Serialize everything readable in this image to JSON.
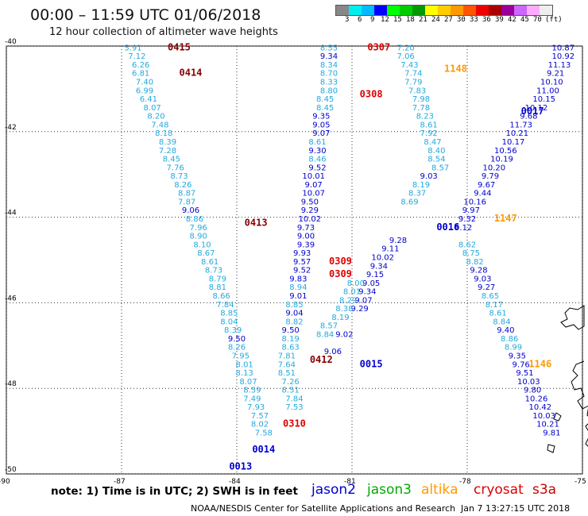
{
  "header": {
    "title": "00:00 – 11:59 UTC 01/06/2018",
    "subtitle": "12 hour collection of altimeter wave heights"
  },
  "legend": {
    "unit": "(ft)",
    "colors": [
      "#888888",
      "#00eeee",
      "#00bbff",
      "#0000ff",
      "#00ff00",
      "#00cc00",
      "#009900",
      "#ffff00",
      "#ffcc00",
      "#ff9900",
      "#ff5500",
      "#ee0000",
      "#aa0000",
      "#990099",
      "#cc66ff",
      "#ffaaff",
      "#eeeeee"
    ],
    "ticks": [
      "3",
      "6",
      "9",
      "12",
      "15",
      "18",
      "21",
      "24",
      "27",
      "30",
      "33",
      "36",
      "39",
      "42",
      "45",
      "70"
    ]
  },
  "axes": {
    "y_labels": [
      "-40",
      "-42",
      "-44",
      "-46",
      "-48",
      "-50"
    ],
    "x_labels": [
      "-90",
      "-87",
      "-84",
      "-81",
      "-78",
      "-75"
    ]
  },
  "satellites": [
    {
      "name": "jason2",
      "color": "#0000cc"
    },
    {
      "name": "jason3",
      "color": "#00aa00"
    },
    {
      "name": "altika",
      "color": "#ff9900"
    },
    {
      "name": "cryosat",
      "color": "#dd0000"
    },
    {
      "name": "s3a",
      "color": "#cc0000"
    }
  ],
  "footer": {
    "note": "note: 1) Time is in UTC; 2) SWH is in feet",
    "credit": "NOAA/NESDIS Center for Satellite Applications and Research",
    "timestamp": "Jan  7 13:27:15 UTC 2018"
  },
  "chart_data": {
    "type": "map",
    "xlim": [
      -90,
      -75
    ],
    "ylim": [
      -50,
      -40
    ],
    "tracks": [
      {
        "satellite": "jason3",
        "pass_labels": [
          {
            "text": "0415",
            "color": "#880000",
            "lon": -85.8,
            "lat": -40.1
          },
          {
            "text": "0414",
            "color": "#880000",
            "lon": -85.5,
            "lat": -40.7
          },
          {
            "text": "0413",
            "color": "#880000",
            "lon": -83.8,
            "lat": -44.2
          },
          {
            "text": "0412",
            "color": "#880000",
            "lon": -82.1,
            "lat": -47.4
          }
        ],
        "points": [
          [
            -86.7,
            -40.1,
            "5.91"
          ],
          [
            -86.6,
            -40.3,
            "7.12"
          ],
          [
            -86.5,
            -40.5,
            "6.26"
          ],
          [
            -86.5,
            -40.7,
            "6.81"
          ],
          [
            -86.4,
            -40.9,
            "7.40"
          ],
          [
            -86.4,
            -41.1,
            "6.99"
          ],
          [
            -86.3,
            -41.3,
            "6.41"
          ],
          [
            -86.2,
            -41.5,
            "8.07"
          ],
          [
            -86.1,
            -41.7,
            "8.20"
          ],
          [
            -86.0,
            -41.9,
            "7.48"
          ],
          [
            -85.9,
            -42.1,
            "8.18"
          ],
          [
            -85.8,
            -42.3,
            "8.39"
          ],
          [
            -85.8,
            -42.5,
            "7.28"
          ],
          [
            -85.7,
            -42.7,
            "8.45"
          ],
          [
            -85.6,
            -42.9,
            "7.76"
          ],
          [
            -85.5,
            -43.1,
            "8.73"
          ],
          [
            -85.4,
            -43.3,
            "8.26"
          ],
          [
            -85.3,
            -43.5,
            "8.87"
          ],
          [
            -85.3,
            -43.7,
            "7.87"
          ],
          [
            -85.2,
            -43.9,
            "9.06"
          ],
          [
            -85.1,
            -44.1,
            "8.86"
          ],
          [
            -85.0,
            -44.3,
            "7.96"
          ],
          [
            -85.0,
            -44.5,
            "8.90"
          ],
          [
            -84.9,
            -44.7,
            "8.10"
          ],
          [
            -84.8,
            -44.9,
            "8.67"
          ],
          [
            -84.7,
            -45.1,
            "8.61"
          ],
          [
            -84.6,
            -45.3,
            "8.73"
          ],
          [
            -84.5,
            -45.5,
            "8.79"
          ],
          [
            -84.5,
            -45.7,
            "8.81"
          ],
          [
            -84.4,
            -45.9,
            "8.66"
          ],
          [
            -84.3,
            -46.1,
            "7.84"
          ],
          [
            -84.2,
            -46.3,
            "8.85"
          ],
          [
            -84.2,
            -46.5,
            "8.04"
          ],
          [
            -84.1,
            -46.7,
            "8.39"
          ],
          [
            -84.0,
            -46.9,
            "9.50"
          ],
          [
            -84.0,
            -47.1,
            "8.26"
          ],
          [
            -83.9,
            -47.3,
            "7.95"
          ],
          [
            -83.8,
            -47.5,
            "8.01"
          ],
          [
            -83.8,
            -47.7,
            "8.13"
          ],
          [
            -83.7,
            -47.9,
            "8.07"
          ],
          [
            -83.6,
            -48.1,
            "8.59"
          ],
          [
            -83.6,
            -48.3,
            "7.49"
          ],
          [
            -83.5,
            -48.5,
            "7.93"
          ],
          [
            -83.4,
            -48.7,
            "7.57"
          ],
          [
            -83.4,
            -48.9,
            "8.02"
          ],
          [
            -83.3,
            -49.1,
            "7.58"
          ]
        ]
      },
      {
        "satellite": "cryosat",
        "pass_labels": [
          {
            "text": "0307",
            "color": "#dd0000",
            "lon": -80.6,
            "lat": -40.1
          },
          {
            "text": "0308",
            "color": "#dd0000",
            "lon": -80.8,
            "lat": -41.2
          },
          {
            "text": "0309",
            "color": "#dd0000",
            "lon": -81.6,
            "lat": -45.1
          },
          {
            "text": "0309",
            "color": "#dd0000",
            "lon": -81.6,
            "lat": -45.4
          },
          {
            "text": "0310",
            "color": "#dd0000",
            "lon": -82.8,
            "lat": -48.9
          }
        ],
        "points": [
          [
            -81.6,
            -40.1,
            "8.55"
          ],
          [
            -81.6,
            -40.3,
            "9.34"
          ],
          [
            -81.6,
            -40.5,
            "8.34"
          ],
          [
            -81.6,
            -40.7,
            "8.70"
          ],
          [
            -81.6,
            -40.9,
            "8.33"
          ],
          [
            -81.6,
            -41.1,
            "8.80"
          ],
          [
            -81.7,
            -41.3,
            "8.45"
          ],
          [
            -81.7,
            -41.5,
            "8.45"
          ],
          [
            -81.8,
            -41.7,
            "9.35"
          ],
          [
            -81.8,
            -41.9,
            "9.05"
          ],
          [
            -81.8,
            -42.1,
            "9.07"
          ],
          [
            -81.9,
            -42.3,
            "8.61"
          ],
          [
            -81.9,
            -42.5,
            "9.30"
          ],
          [
            -81.9,
            -42.7,
            "8.46"
          ],
          [
            -81.9,
            -42.9,
            "9.52"
          ],
          [
            -82.0,
            -43.1,
            "10.01"
          ],
          [
            -82.0,
            -43.3,
            "9.07"
          ],
          [
            -82.0,
            -43.5,
            "10.07"
          ],
          [
            -82.1,
            -43.7,
            "9.50"
          ],
          [
            -82.1,
            -43.9,
            "9.29"
          ],
          [
            -82.1,
            -44.1,
            "10.02"
          ],
          [
            -82.2,
            -44.3,
            "9.73"
          ],
          [
            -82.2,
            -44.5,
            "9.00"
          ],
          [
            -82.2,
            -44.7,
            "9.39"
          ],
          [
            -82.3,
            -44.9,
            "9.93"
          ],
          [
            -82.3,
            -45.1,
            "9.57"
          ],
          [
            -82.3,
            -45.3,
            "9.52"
          ],
          [
            -82.4,
            -45.5,
            "9.83"
          ],
          [
            -82.4,
            -45.7,
            "8.94"
          ],
          [
            -82.4,
            -45.9,
            "9.01"
          ],
          [
            -82.5,
            -46.1,
            "8.85"
          ],
          [
            -82.5,
            -46.3,
            "9.04"
          ],
          [
            -82.5,
            -46.5,
            "8.82"
          ],
          [
            -82.6,
            -46.7,
            "9.50"
          ],
          [
            -82.6,
            -46.9,
            "8.19"
          ],
          [
            -82.6,
            -47.1,
            "8.63"
          ],
          [
            -82.7,
            -47.3,
            "7.81"
          ],
          [
            -82.7,
            -47.5,
            "7.64"
          ],
          [
            -82.7,
            -47.7,
            "8.51"
          ],
          [
            -82.6,
            -47.9,
            "7.26"
          ],
          [
            -82.6,
            -48.1,
            "8.51"
          ],
          [
            -82.5,
            -48.3,
            "7.84"
          ],
          [
            -82.5,
            -48.5,
            "7.53"
          ]
        ]
      },
      {
        "satellite": "jason2",
        "pass_labels": [
          {
            "text": "0015",
            "color": "#0000cc",
            "lon": -80.8,
            "lat": -47.5
          },
          {
            "text": "0014",
            "color": "#0000cc",
            "lon": -83.6,
            "lat": -49.5
          },
          {
            "text": "0013",
            "color": "#0000cc",
            "lon": -84.2,
            "lat": -49.9
          }
        ],
        "points": [
          [
            -79.8,
            -44.6,
            "9.28"
          ],
          [
            -80.0,
            -44.8,
            "9.11"
          ],
          [
            -80.2,
            -45.0,
            "10.02"
          ],
          [
            -80.3,
            -45.2,
            "9.34"
          ],
          [
            -80.4,
            -45.4,
            "9.15"
          ],
          [
            -80.5,
            -45.6,
            "9.05"
          ],
          [
            -80.6,
            -45.8,
            "9.34"
          ],
          [
            -80.7,
            -46.0,
            "9.07"
          ],
          [
            -80.8,
            -46.2,
            "9.29"
          ],
          [
            -81.2,
            -46.8,
            "9.02"
          ],
          [
            -81.5,
            -47.2,
            "9.06"
          ]
        ]
      },
      {
        "satellite": "jason2",
        "pass_labels": [
          {
            "text": "0016",
            "color": "#0000cc",
            "lon": -78.8,
            "lat": -44.3
          },
          {
            "text": "0017",
            "color": "#0000cc",
            "lon": -76.6,
            "lat": -41.6
          }
        ],
        "points": [
          [
            -75.5,
            -40.1,
            "10.87"
          ],
          [
            -75.5,
            -40.3,
            "10.92"
          ],
          [
            -75.6,
            -40.5,
            "11.13"
          ],
          [
            -75.7,
            -40.7,
            "9.21"
          ],
          [
            -75.8,
            -40.9,
            "10.10"
          ],
          [
            -75.9,
            -41.1,
            "11.00"
          ],
          [
            -76.0,
            -41.3,
            "10.15"
          ],
          [
            -76.2,
            -41.5,
            "10.12"
          ],
          [
            -76.4,
            -41.7,
            "9.68"
          ],
          [
            -76.6,
            -41.9,
            "11.73"
          ],
          [
            -76.7,
            -42.1,
            "10.21"
          ],
          [
            -76.8,
            -42.3,
            "10.17"
          ],
          [
            -77.0,
            -42.5,
            "10.56"
          ],
          [
            -77.1,
            -42.7,
            "10.19"
          ],
          [
            -77.3,
            -42.9,
            "10.20"
          ],
          [
            -77.4,
            -43.1,
            "9.79"
          ],
          [
            -77.5,
            -43.3,
            "9.67"
          ],
          [
            -77.6,
            -43.5,
            "9.44"
          ],
          [
            -77.8,
            -43.7,
            "10.16"
          ],
          [
            -77.9,
            -43.9,
            "9.97"
          ],
          [
            -78.0,
            -44.1,
            "9.32"
          ],
          [
            -78.1,
            -44.3,
            "9.12"
          ],
          [
            -78.0,
            -44.7,
            "8.62"
          ],
          [
            -77.9,
            -44.9,
            "8.75"
          ],
          [
            -77.8,
            -45.1,
            "8.82"
          ],
          [
            -77.7,
            -45.3,
            "9.28"
          ],
          [
            -77.6,
            -45.5,
            "9.03"
          ],
          [
            -77.5,
            -45.7,
            "9.27"
          ],
          [
            -77.4,
            -45.9,
            "8.65"
          ],
          [
            -77.3,
            -46.1,
            "8.17"
          ],
          [
            -77.2,
            -46.3,
            "8.61"
          ],
          [
            -77.1,
            -46.5,
            "8.84"
          ],
          [
            -77.0,
            -46.7,
            "9.40"
          ],
          [
            -76.9,
            -46.9,
            "8.86"
          ],
          [
            -76.8,
            -47.1,
            "8.99"
          ],
          [
            -76.7,
            -47.3,
            "9.35"
          ],
          [
            -76.6,
            -47.5,
            "9.76"
          ],
          [
            -76.5,
            -47.7,
            "9.51"
          ],
          [
            -76.4,
            -47.9,
            "10.03"
          ],
          [
            -76.3,
            -48.1,
            "9.80"
          ],
          [
            -76.2,
            -48.3,
            "10.26"
          ],
          [
            -76.1,
            -48.5,
            "10.42"
          ],
          [
            -76.0,
            -48.7,
            "10.03"
          ],
          [
            -75.9,
            -48.9,
            "10.21"
          ],
          [
            -75.8,
            -49.1,
            "9.81"
          ]
        ]
      },
      {
        "satellite": "altika",
        "pass_labels": [
          {
            "text": "1148",
            "color": "#ff9900",
            "lon": -78.6,
            "lat": -40.6
          },
          {
            "text": "1147",
            "color": "#ff9900",
            "lon": -77.3,
            "lat": -44.1
          },
          {
            "text": "1146",
            "color": "#ff9900",
            "lon": -76.4,
            "lat": -47.5
          }
        ],
        "points": []
      },
      {
        "satellite": "jason3",
        "pass_labels": [],
        "points": [
          [
            -79.6,
            -40.1,
            "7.20"
          ],
          [
            -79.6,
            -40.3,
            "7.06"
          ],
          [
            -79.5,
            -40.5,
            "7.43"
          ],
          [
            -79.4,
            -40.7,
            "7.74"
          ],
          [
            -79.4,
            -40.9,
            "7.79"
          ],
          [
            -79.3,
            -41.1,
            "7.83"
          ],
          [
            -79.2,
            -41.3,
            "7.98"
          ],
          [
            -79.2,
            -41.5,
            "7.78"
          ],
          [
            -79.1,
            -41.7,
            "8.23"
          ],
          [
            -79.0,
            -41.9,
            "8.61"
          ],
          [
            -79.0,
            -42.1,
            "7.92"
          ],
          [
            -78.9,
            -42.3,
            "8.47"
          ],
          [
            -78.8,
            -42.5,
            "8.40"
          ],
          [
            -78.8,
            -42.7,
            "8.54"
          ],
          [
            -78.7,
            -42.9,
            "8.57"
          ],
          [
            -79.0,
            -43.1,
            "9.03"
          ],
          [
            -79.2,
            -43.3,
            "8.19"
          ],
          [
            -79.3,
            -43.5,
            "8.37"
          ],
          [
            -79.5,
            -43.7,
            "8.69"
          ],
          [
            -80.9,
            -45.6,
            "8.00"
          ],
          [
            -81.0,
            -45.8,
            "8.01"
          ],
          [
            -81.1,
            -46.0,
            "8.29"
          ],
          [
            -81.2,
            -46.2,
            "8.38"
          ],
          [
            -81.3,
            -46.4,
            "8.19"
          ],
          [
            -81.6,
            -46.6,
            "8.57"
          ],
          [
            -81.7,
            -46.8,
            "8.84"
          ]
        ]
      }
    ]
  }
}
